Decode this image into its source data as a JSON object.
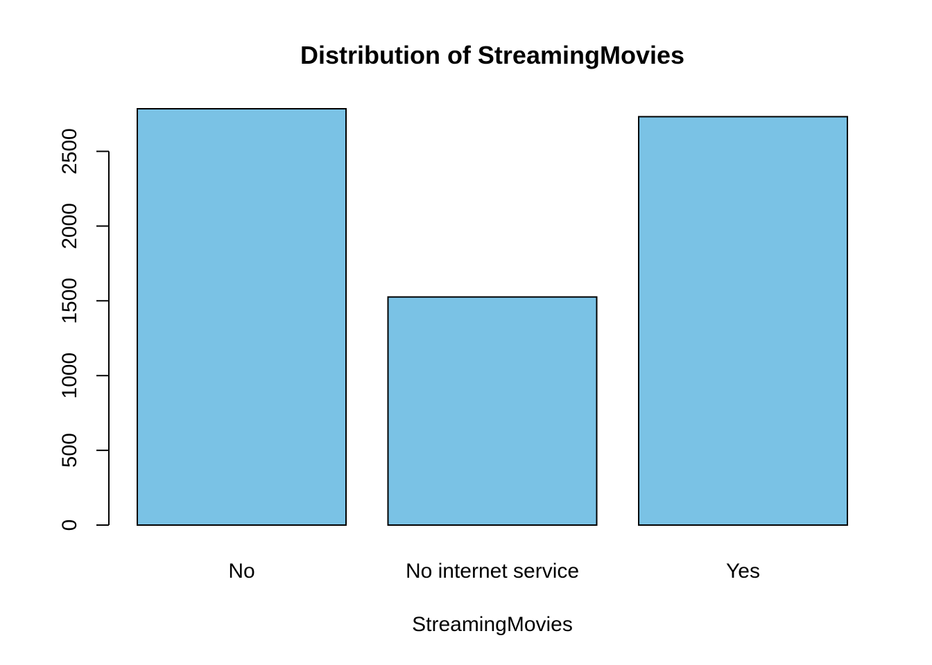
{
  "chart_data": {
    "type": "bar",
    "title": "Distribution of StreamingMovies",
    "xlabel": "StreamingMovies",
    "ylabel": "",
    "categories": [
      "No",
      "No internet service",
      "Yes"
    ],
    "values": [
      2785,
      1526,
      2732
    ],
    "yticks": [
      0,
      500,
      1000,
      1500,
      2000,
      2500
    ],
    "ylim": [
      0,
      2785
    ],
    "grid": false,
    "legend": "none",
    "colors": {
      "bar_fill": "#7AC2E5",
      "bar_stroke": "#000000",
      "axis": "#000000",
      "background": "#FFFFFF"
    }
  }
}
